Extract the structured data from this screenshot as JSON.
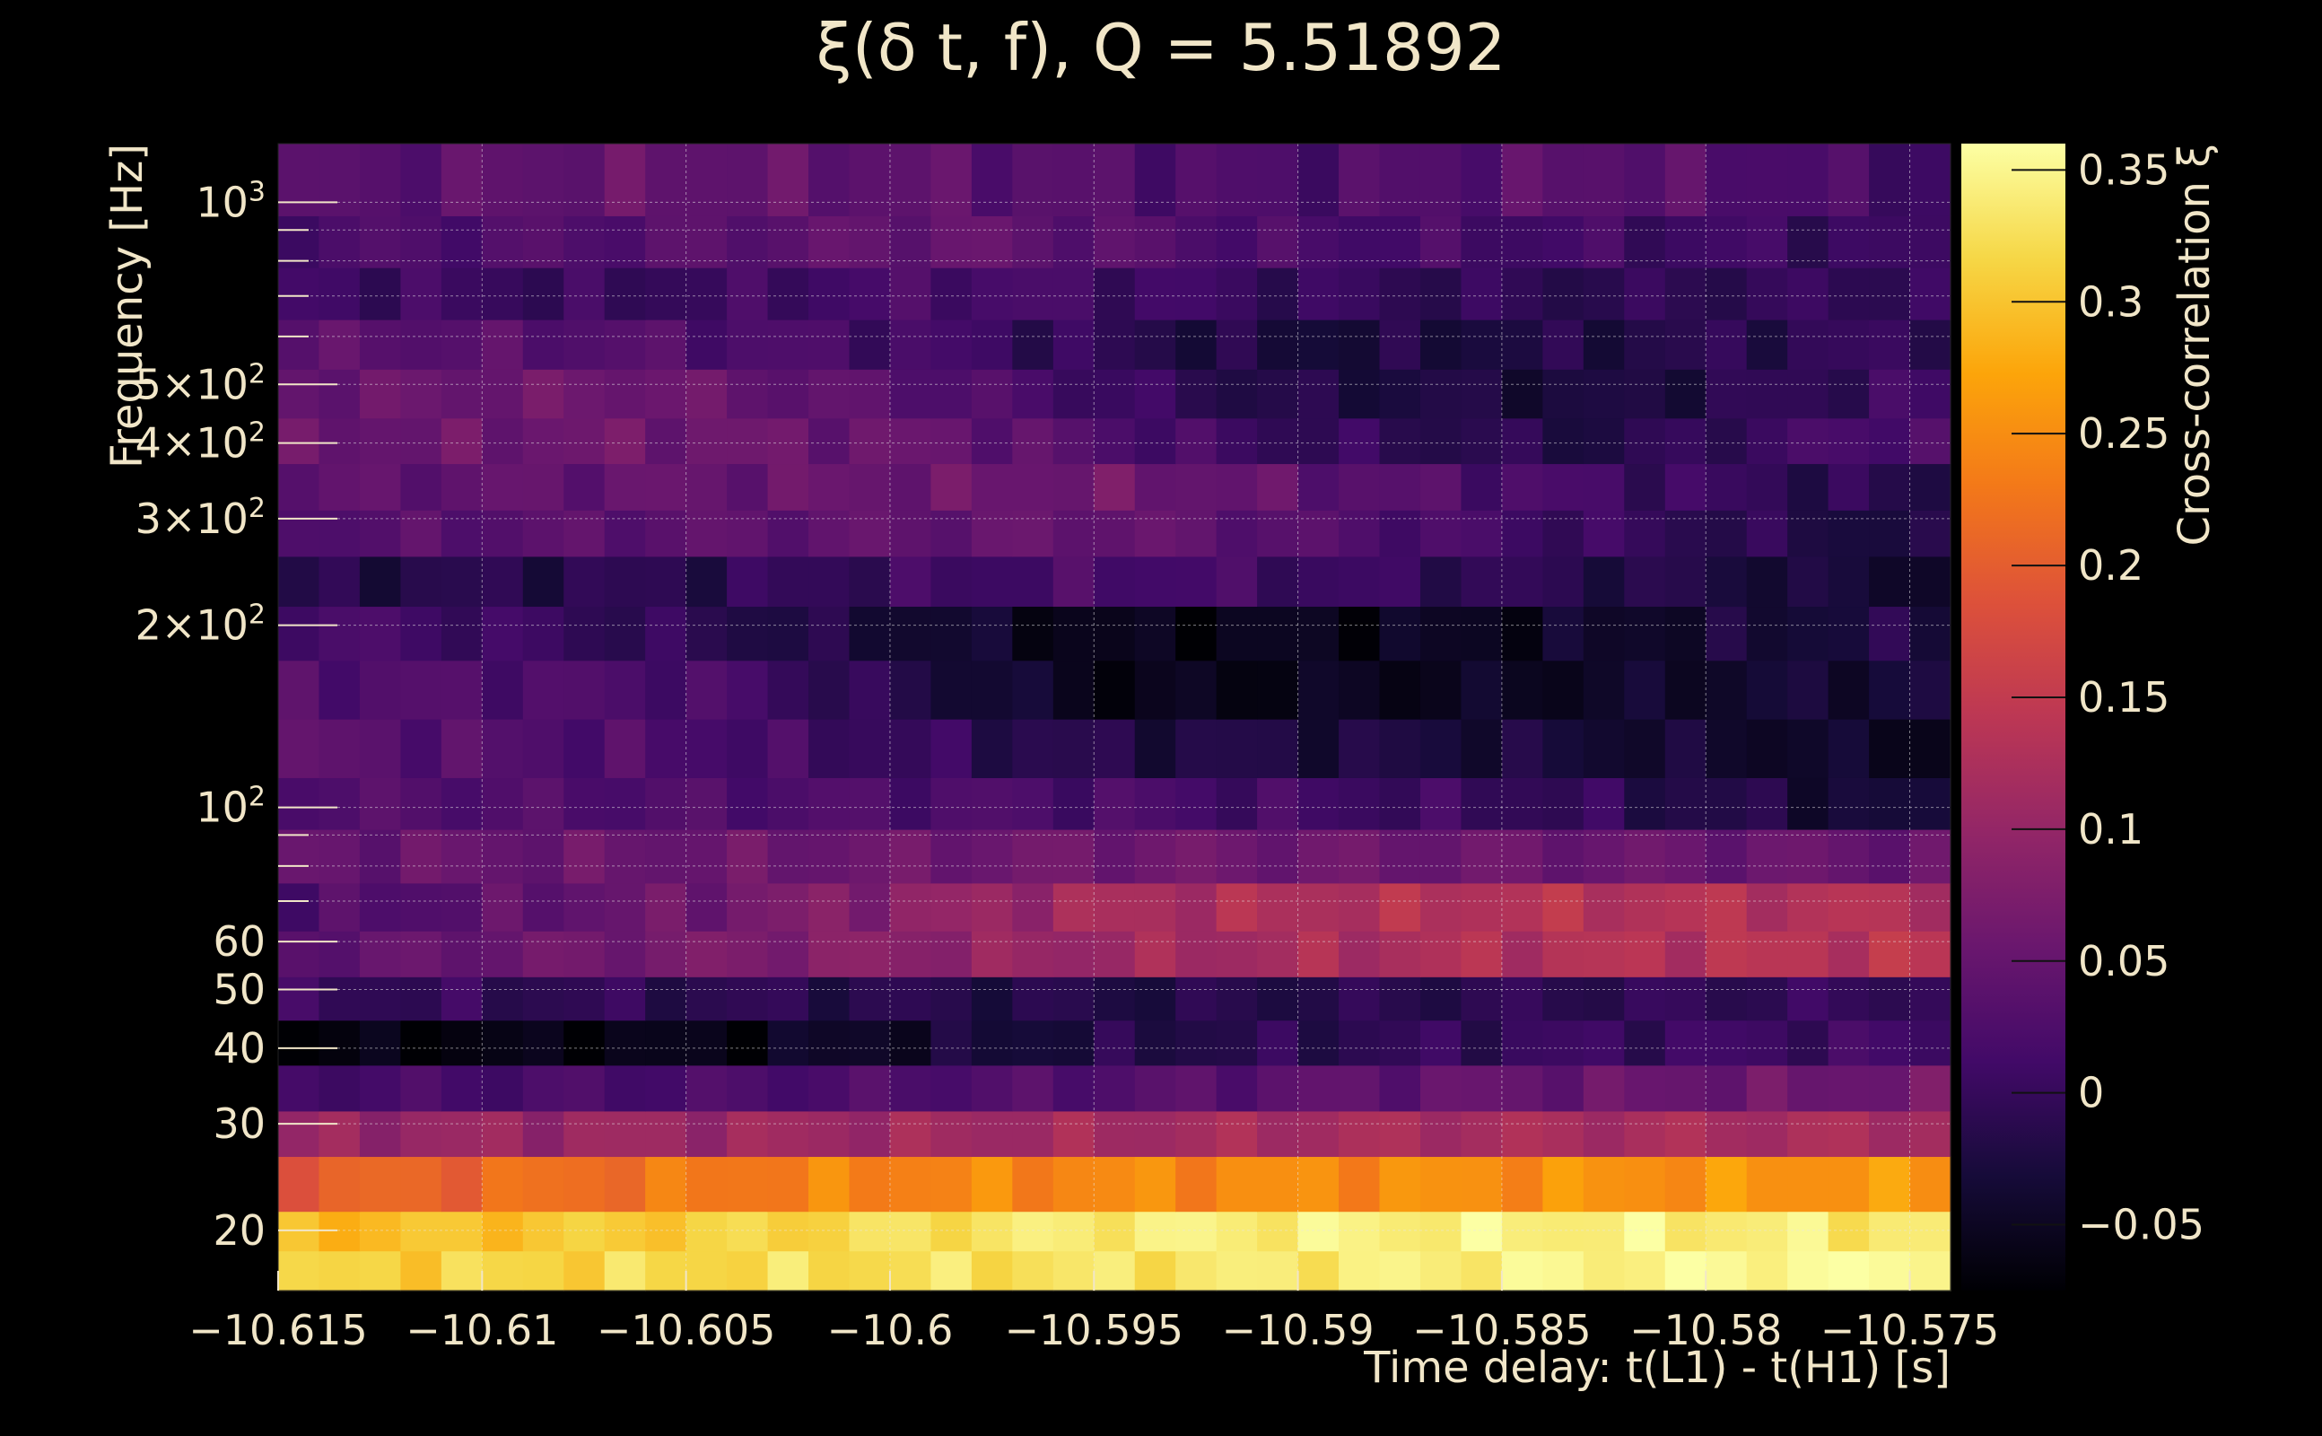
{
  "chart_data": {
    "type": "heatmap",
    "title": "ξ(δ t, f), Q = 5.51892",
    "xlabel": "Time delay: t(L1) - t(H1) [s]",
    "ylabel": "Frequency [Hz]",
    "colorbar_label": "Cross-correlation ξ",
    "xlim": [
      -10.615,
      -10.574
    ],
    "ylim": [
      15.9,
      1250
    ],
    "y_scale": "log",
    "grid": true,
    "colormap": "inferno",
    "colorbar_range": [
      -0.075,
      0.36
    ],
    "colorbar_ticks": [
      {
        "value": 0.35,
        "label": "0.35"
      },
      {
        "value": 0.3,
        "label": "0.3"
      },
      {
        "value": 0.25,
        "label": "0.25"
      },
      {
        "value": 0.2,
        "label": "0.2"
      },
      {
        "value": 0.15,
        "label": "0.15"
      },
      {
        "value": 0.1,
        "label": "0.1"
      },
      {
        "value": 0.05,
        "label": "0.05"
      },
      {
        "value": 0,
        "label": "0"
      },
      {
        "value": -0.05,
        "label": "−0.05"
      }
    ],
    "x_ticks": [
      {
        "value": -10.615,
        "label": "−10.615"
      },
      {
        "value": -10.61,
        "label": "−10.61"
      },
      {
        "value": -10.605,
        "label": "−10.605"
      },
      {
        "value": -10.6,
        "label": "−10.6"
      },
      {
        "value": -10.595,
        "label": "−10.595"
      },
      {
        "value": -10.59,
        "label": "−10.59"
      },
      {
        "value": -10.585,
        "label": "−10.585"
      },
      {
        "value": -10.58,
        "label": "−10.58"
      },
      {
        "value": -10.575,
        "label": "−10.575"
      }
    ],
    "y_ticks": [
      {
        "value": 20,
        "label": "20",
        "exp": ""
      },
      {
        "value": 30,
        "label": "30",
        "exp": ""
      },
      {
        "value": 40,
        "label": "40",
        "exp": ""
      },
      {
        "value": 50,
        "label": "50",
        "exp": ""
      },
      {
        "value": 60,
        "label": "60",
        "exp": ""
      },
      {
        "value": 100,
        "label": "10",
        "exp": "2"
      },
      {
        "value": 200,
        "label": "2×10",
        "exp": "2"
      },
      {
        "value": 300,
        "label": "3×10",
        "exp": "2"
      },
      {
        "value": 400,
        "label": "4×10",
        "exp": "2"
      },
      {
        "value": 500,
        "label": "5×10",
        "exp": "2"
      },
      {
        "value": 1000,
        "label": "10",
        "exp": "3"
      }
    ],
    "y_minor_ticks": [
      70,
      80,
      90,
      600,
      700,
      800,
      900
    ],
    "rows": [
      {
        "f_low": 15.9,
        "f_high": 18.5,
        "keys": [
          0.31,
          0.33,
          0.36
        ]
      },
      {
        "f_low": 18.5,
        "f_high": 21.5,
        "keys": [
          0.29,
          0.31,
          0.34,
          0.345,
          0.335
        ]
      },
      {
        "f_low": 21.5,
        "f_high": 26.5,
        "keys": [
          0.2,
          0.24,
          0.25,
          0.26
        ]
      },
      {
        "f_low": 26.5,
        "f_high": 31.5,
        "keys": [
          0.1,
          0.11,
          0.12,
          0.12
        ]
      },
      {
        "f_low": 31.5,
        "f_high": 37.5,
        "keys": [
          0.015,
          0.02,
          0.03,
          0.05,
          0.06
        ]
      },
      {
        "f_low": 37.5,
        "f_high": 44.5,
        "keys": [
          -0.07,
          -0.06,
          -0.02,
          0.0,
          0.01
        ]
      },
      {
        "f_low": 44.5,
        "f_high": 52.5,
        "keys": [
          0.0,
          -0.01,
          -0.02,
          -0.01,
          0.0
        ]
      },
      {
        "f_low": 52.5,
        "f_high": 62.5,
        "keys": [
          0.04,
          0.07,
          0.11,
          0.13,
          0.14
        ]
      },
      {
        "f_low": 62.5,
        "f_high": 75.0,
        "keys": [
          0.02,
          0.06,
          0.12,
          0.135,
          0.13
        ]
      },
      {
        "f_low": 75.0,
        "f_high": 92.0,
        "keys": [
          0.05,
          0.055,
          0.06,
          0.055,
          0.05
        ]
      },
      {
        "f_low": 92.0,
        "f_high": 112.0,
        "keys": [
          0.03,
          0.025,
          0.02,
          0.0,
          -0.04
        ]
      },
      {
        "f_low": 112.0,
        "f_high": 140.0,
        "keys": [
          0.04,
          0.02,
          -0.02,
          -0.03,
          -0.05
        ]
      },
      {
        "f_low": 140.0,
        "f_high": 175.0,
        "keys": [
          0.03,
          0.02,
          -0.06,
          -0.05,
          -0.03
        ]
      },
      {
        "f_low": 175.0,
        "f_high": 215.0,
        "keys": [
          0.02,
          -0.01,
          -0.06,
          -0.05,
          -0.02
        ]
      },
      {
        "f_low": 215.0,
        "f_high": 260.0,
        "keys": [
          -0.02,
          -0.01,
          0.02,
          -0.01,
          -0.04
        ]
      },
      {
        "f_low": 260.0,
        "f_high": 310.0,
        "keys": [
          0.03,
          0.04,
          0.05,
          0.01,
          -0.03
        ]
      },
      {
        "f_low": 310.0,
        "f_high": 370.0,
        "keys": [
          0.04,
          0.05,
          0.06,
          0.02,
          -0.02
        ]
      },
      {
        "f_low": 370.0,
        "f_high": 440.0,
        "keys": [
          0.05,
          0.06,
          0.05,
          0.0,
          -0.02,
          0.03
        ]
      },
      {
        "f_low": 440.0,
        "f_high": 530.0,
        "keys": [
          0.05,
          0.06,
          0.03,
          -0.02,
          -0.03,
          0.01
        ]
      },
      {
        "f_low": 530.0,
        "f_high": 640.0,
        "keys": [
          0.04,
          0.03,
          0.01,
          -0.03,
          -0.02,
          0.0
        ]
      },
      {
        "f_low": 640.0,
        "f_high": 780.0,
        "keys": [
          0.01,
          0.0,
          0.02,
          0.0,
          -0.01,
          0.0
        ]
      },
      {
        "f_low": 780.0,
        "f_high": 950.0,
        "keys": [
          0.02,
          0.03,
          0.05,
          0.02,
          0.01,
          0.0
        ]
      },
      {
        "f_low": 950.0,
        "f_high": 1250.0,
        "keys": [
          0.03,
          0.05,
          0.04,
          0.02,
          0.04,
          0.01
        ]
      }
    ]
  }
}
